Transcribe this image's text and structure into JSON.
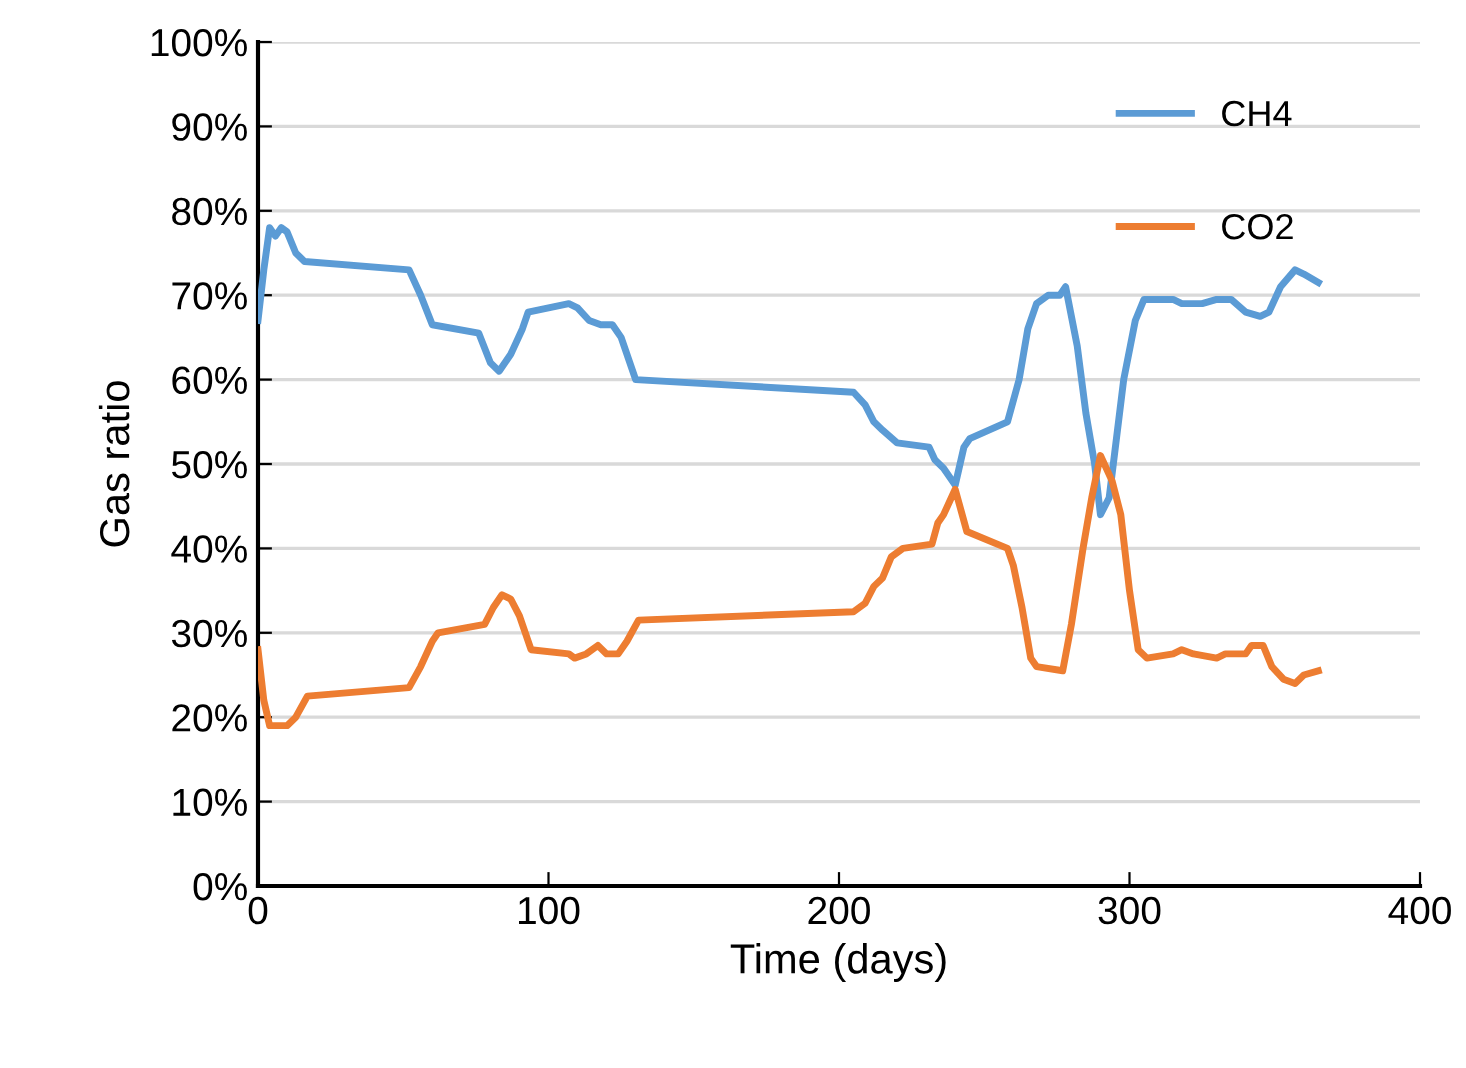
{
  "chart_data": {
    "type": "line",
    "xlabel": "Time (days)",
    "ylabel": "Gas ratio",
    "xlim": [
      0,
      400
    ],
    "xticks": [
      0,
      100,
      200,
      300,
      400
    ],
    "ylim": [
      0,
      100
    ],
    "yticks": [
      {
        "value": 0,
        "label": "0%"
      },
      {
        "value": 10,
        "label": "10%"
      },
      {
        "value": 20,
        "label": "20%"
      },
      {
        "value": 30,
        "label": "30%"
      },
      {
        "value": 40,
        "label": "40%"
      },
      {
        "value": 50,
        "label": "50%"
      },
      {
        "value": 60,
        "label": "60%"
      },
      {
        "value": 70,
        "label": "70%"
      },
      {
        "value": 80,
        "label": "80%"
      },
      {
        "value": 90,
        "label": "90%"
      },
      {
        "value": 100,
        "label": "100%"
      }
    ],
    "grid": "y",
    "legend": "top right",
    "marker": "none",
    "line_style": "solid",
    "series": [
      {
        "name": "CH4",
        "color": "#5b9bd5",
        "x": [
          0,
          2,
          4,
          6,
          8,
          10,
          13,
          16,
          52,
          56,
          60,
          76,
          80,
          83,
          87,
          91,
          93,
          107,
          110,
          114,
          118,
          122,
          125,
          130,
          205,
          209,
          212,
          215,
          220,
          231,
          233,
          236,
          240,
          243,
          245,
          258,
          262,
          265,
          268,
          272,
          276,
          278,
          282,
          285,
          288,
          290,
          293,
          298,
          302,
          305,
          315,
          318,
          325,
          330,
          335,
          340,
          345,
          348,
          352,
          357,
          360,
          365
        ],
        "values": [
          67,
          73,
          78,
          77,
          78,
          77.5,
          75,
          74,
          73,
          70,
          66.5,
          65.5,
          62,
          61,
          63,
          66,
          68,
          69,
          68.5,
          67,
          66.5,
          66.5,
          65,
          60,
          58.5,
          57,
          55,
          54,
          52.5,
          52,
          50.5,
          49.5,
          47.5,
          52,
          53,
          55,
          60,
          66,
          69,
          70,
          70,
          71,
          64,
          56,
          50,
          44,
          46,
          60,
          67,
          69.5,
          69.5,
          69,
          69,
          69.5,
          69.5,
          68,
          67.5,
          68,
          71,
          73,
          72.5,
          71.5
        ]
      },
      {
        "name": "CO2",
        "color": "#ed7d31",
        "x": [
          0,
          2,
          4,
          7,
          10,
          13,
          17,
          52,
          56,
          60,
          62,
          78,
          81,
          84,
          87,
          90,
          94,
          107,
          109,
          113,
          117,
          120,
          124,
          127,
          131,
          205,
          209,
          212,
          215,
          218,
          222,
          232,
          234,
          236,
          240,
          244,
          258,
          260,
          263,
          266,
          268,
          277,
          280,
          284,
          287,
          290,
          294,
          297,
          300,
          303,
          306,
          315,
          318,
          322,
          330,
          333,
          340,
          342,
          346,
          349,
          353,
          357,
          360,
          365
        ],
        "values": [
          28,
          22,
          19,
          19,
          19,
          20,
          22.5,
          23.5,
          26,
          29,
          30,
          31,
          33,
          34.5,
          34,
          32,
          28,
          27.5,
          27,
          27.5,
          28.5,
          27.5,
          27.5,
          29,
          31.5,
          32.5,
          33.5,
          35.5,
          36.5,
          39,
          40,
          40.5,
          43,
          44,
          47,
          42,
          40,
          38,
          33,
          27,
          26,
          25.5,
          31,
          40,
          46,
          51,
          48,
          44,
          35,
          28,
          27,
          27.5,
          28,
          27.5,
          27,
          27.5,
          27.5,
          28.5,
          28.5,
          26,
          24.5,
          24,
          25,
          25.5
        ]
      }
    ]
  }
}
